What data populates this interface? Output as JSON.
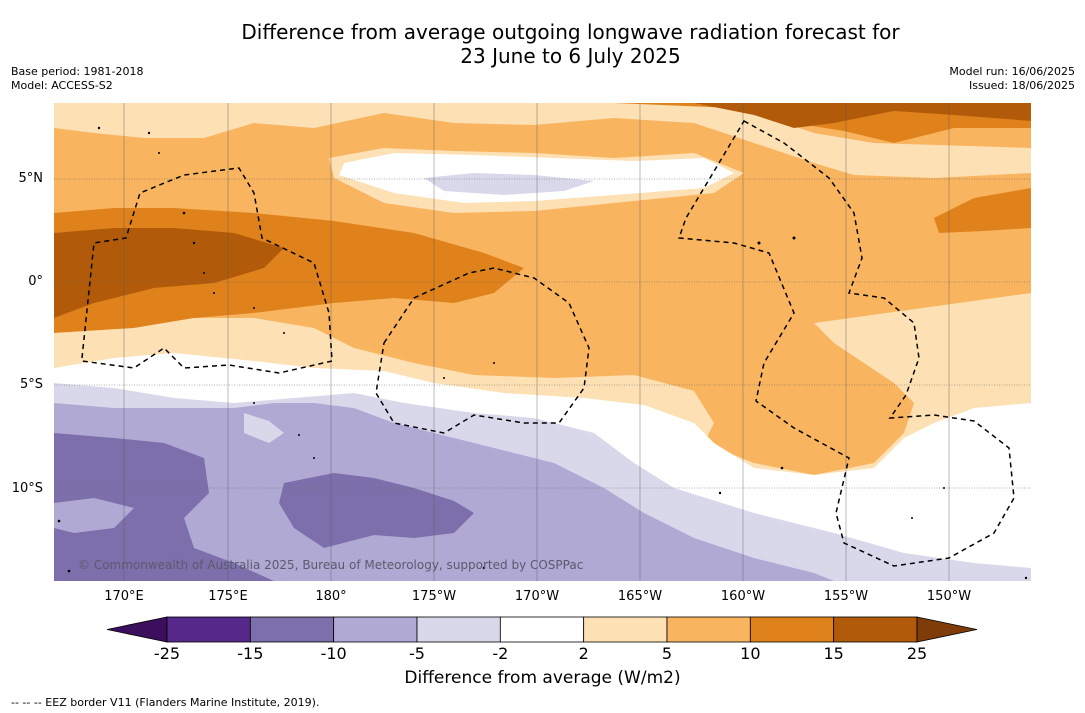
{
  "title": {
    "line1": "Difference from average outgoing longwave radiation forecast for",
    "line2": "23 June to 6 July 2025"
  },
  "meta_left": {
    "base_period": "Base period: 1981-2018",
    "model": "Model: ACCESS-S2"
  },
  "meta_right": {
    "model_run": "Model run: 16/06/2025",
    "issued": "Issued: 18/06/2025"
  },
  "lat_labels": [
    "5°N",
    "0°",
    "5°S",
    "10°S"
  ],
  "lon_labels": [
    "170°E",
    "175°E",
    "180°",
    "175°W",
    "170°W",
    "165°W",
    "160°W",
    "155°W",
    "150°W"
  ],
  "colorbar": {
    "ticks": [
      "-25",
      "-15",
      "-10",
      "-5",
      "-2",
      "2",
      "5",
      "10",
      "15",
      "25"
    ],
    "colors": [
      "#3b0f5e",
      "#56288a",
      "#7d6fab",
      "#b0a9d3",
      "#d9d8eb",
      "#ffffff",
      "#fde0b4",
      "#f9b45f",
      "#e0821c",
      "#b15b0a",
      "#7f3b08"
    ],
    "title": "Difference from average (W/m2)"
  },
  "copyright": "© Commonwealth of Australia 2025, Bureau of Meteorology, supported by COSPPac",
  "footnote": "--  --  -- EEZ border V11 (Flanders Marine Institute, 2019)."
}
